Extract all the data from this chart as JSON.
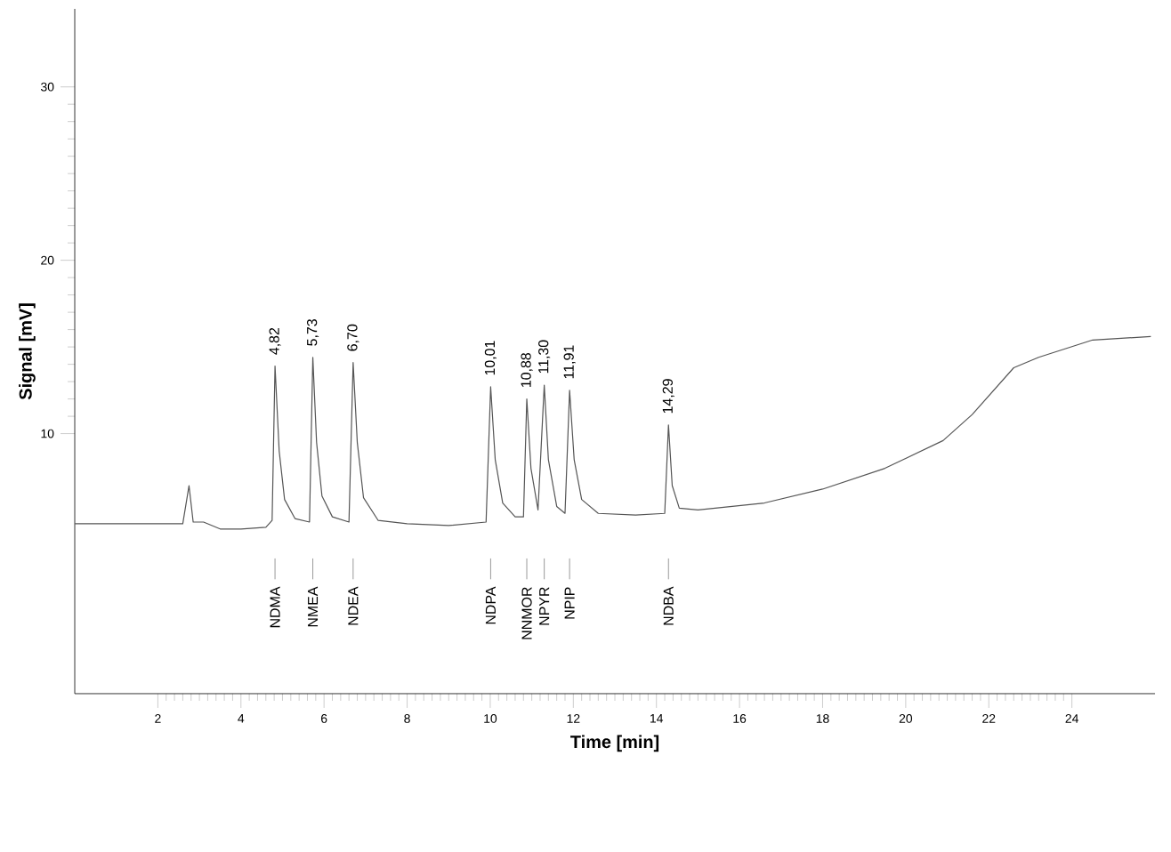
{
  "chart_data": {
    "type": "line",
    "xlabel": "Time  [min]",
    "ylabel": "Signal  **[mV]**",
    "x": [
      0,
      1,
      2,
      2.6,
      2.75,
      2.85,
      3.1,
      3.5,
      4.0,
      4.6,
      4.75,
      4.82,
      4.92,
      5.05,
      5.3,
      5.65,
      5.73,
      5.82,
      5.95,
      6.2,
      6.6,
      6.7,
      6.8,
      6.95,
      7.3,
      8.0,
      9.0,
      9.9,
      10.01,
      10.12,
      10.3,
      10.6,
      10.8,
      10.88,
      10.98,
      11.15,
      11.3,
      11.4,
      11.6,
      11.8,
      11.91,
      12.02,
      12.2,
      12.6,
      13.5,
      14.2,
      14.29,
      14.38,
      14.55,
      15.0,
      16.6,
      18.0,
      19.5,
      20.9,
      21.6,
      22.6,
      23.2,
      24.5,
      25.9
    ],
    "series": [
      {
        "color": "#555555",
        "values": [
          4.8,
          4.8,
          4.8,
          4.8,
          7.0,
          4.9,
          4.9,
          4.5,
          4.5,
          4.6,
          5.0,
          13.9,
          9.0,
          6.2,
          5.1,
          4.9,
          14.4,
          9.5,
          6.4,
          5.2,
          4.9,
          14.1,
          9.5,
          6.3,
          5.0,
          4.8,
          4.7,
          4.9,
          12.7,
          8.5,
          6.0,
          5.2,
          5.2,
          12.0,
          8.0,
          5.6,
          12.8,
          8.5,
          5.8,
          5.4,
          12.5,
          8.5,
          6.2,
          5.4,
          5.3,
          5.4,
          10.5,
          7.0,
          5.7,
          5.6,
          6.0,
          6.8,
          8.0,
          9.6,
          11.1,
          13.8,
          14.4,
          15.4,
          15.6
        ]
      }
    ],
    "xlim": [
      0,
      26
    ],
    "ylim": [
      -5,
      34.5
    ],
    "xticks": [
      2,
      4,
      6,
      8,
      10,
      12,
      14,
      16,
      18,
      20,
      22,
      24
    ],
    "yticks": [
      10,
      20,
      30
    ],
    "grid": false,
    "marker": "none",
    "line_style": "solid",
    "annotations": [
      {
        "text": "4,82",
        "x": 4.82,
        "y": 13.9
      },
      {
        "text": "5,73",
        "x": 5.73,
        "y": 14.4
      },
      {
        "text": "6,70",
        "x": 6.7,
        "y": 14.1
      },
      {
        "text": "10,01",
        "x": 10.01,
        "y": 12.7
      },
      {
        "text": "10,88",
        "x": 10.88,
        "y": 12.0
      },
      {
        "text": "11,30",
        "x": 11.3,
        "y": 12.8
      },
      {
        "text": "11,91",
        "x": 11.91,
        "y": 12.5
      },
      {
        "text": "14,29",
        "x": 14.29,
        "y": 10.5
      },
      "NDMA",
      "NMEA",
      "NDEA",
      "NDPA",
      "NNMOR",
      "NPYR",
      "NPIP",
      "NDBA"
    ]
  }
}
